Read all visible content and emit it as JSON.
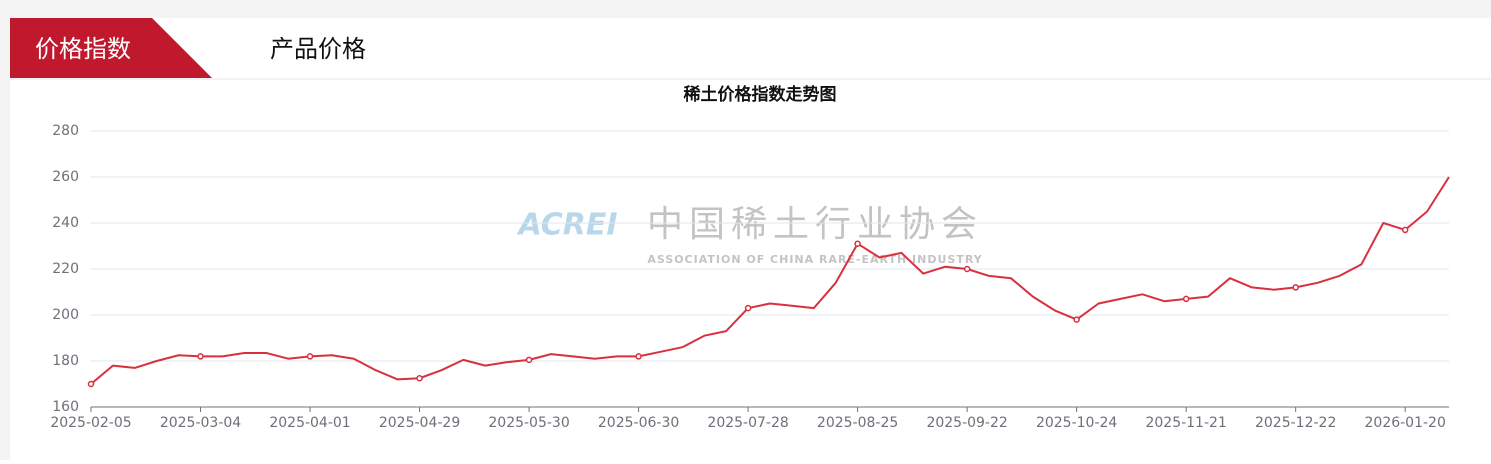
{
  "tabs": [
    "价格指数",
    "产品价格"
  ],
  "watermark": {
    "logo": "ACREI",
    "name": "中国稀土行业协会",
    "subtitle": "ASSOCIATION OF CHINA RARE-EARTH INDUSTRY"
  },
  "chart_data": {
    "type": "line",
    "title": "稀土价格指数走势图",
    "categories": [
      "2025-02-05",
      null,
      null,
      null,
      null,
      "2025-03-04",
      null,
      null,
      null,
      null,
      "2025-04-01",
      null,
      null,
      null,
      null,
      "2025-04-29",
      null,
      null,
      null,
      null,
      "2025-05-30",
      null,
      null,
      null,
      null,
      "2025-06-30",
      null,
      null,
      null,
      null,
      "2025-07-28",
      null,
      null,
      null,
      null,
      "2025-08-25",
      null,
      null,
      null,
      null,
      "2025-09-22",
      null,
      null,
      null,
      null,
      "2025-10-24",
      null,
      null,
      null,
      null,
      "2025-11-21",
      null,
      null,
      null,
      null,
      "2025-12-22",
      null,
      null,
      null,
      null,
      "2026-01-20",
      null,
      null
    ],
    "values": [
      170,
      178,
      177,
      180,
      182.5,
      182,
      182,
      183.5,
      183.5,
      181,
      182,
      182.5,
      181,
      176,
      172,
      172.5,
      176,
      180.5,
      178,
      179.5,
      180.5,
      183,
      182,
      181,
      182,
      182,
      184,
      186,
      191,
      193,
      203,
      205,
      204,
      203,
      214,
      231,
      225,
      227,
      218,
      221,
      220,
      217,
      216,
      208,
      202,
      198,
      205,
      207,
      209,
      206,
      207,
      208,
      216,
      212,
      211,
      212,
      214,
      217,
      222,
      240,
      237,
      245,
      260
    ],
    "color": "#d9303e",
    "ylim": [
      160,
      280
    ],
    "yticks": [
      160,
      180,
      200,
      220,
      240,
      260,
      280
    ],
    "grid": true
  }
}
